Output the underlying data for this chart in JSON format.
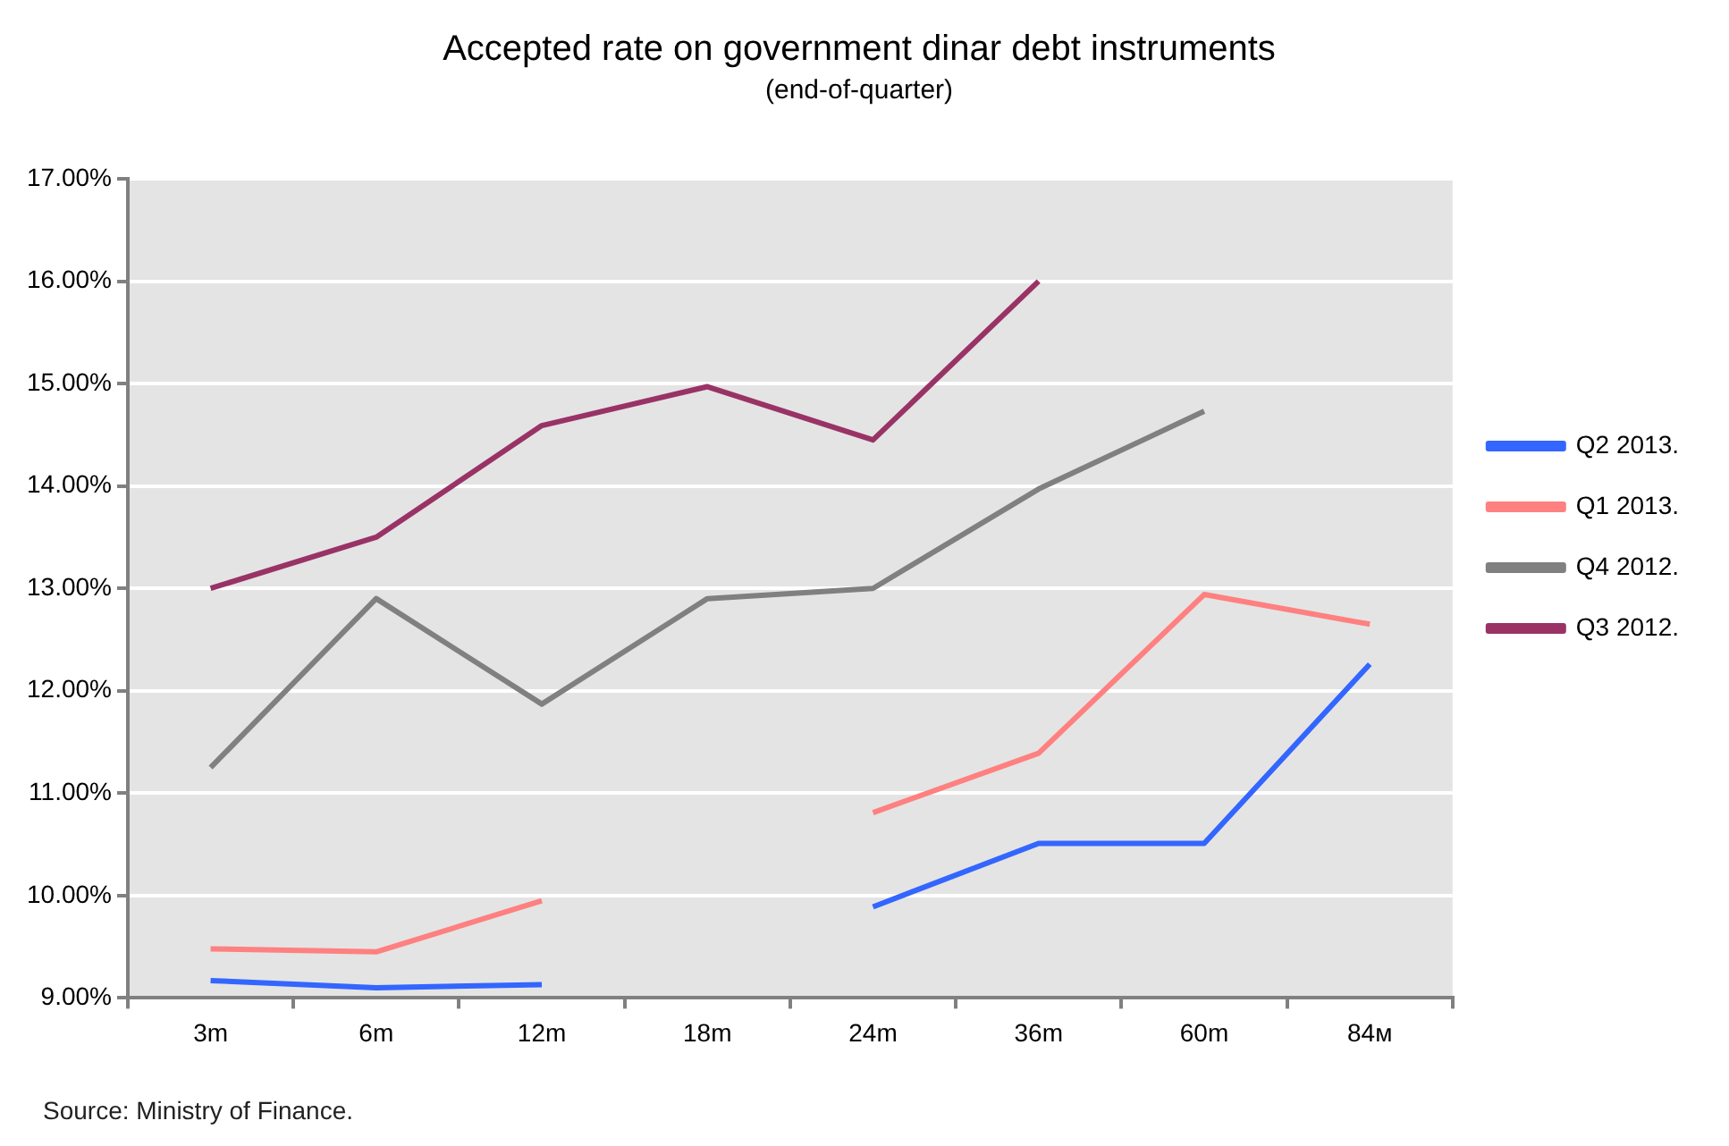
{
  "chart_data": {
    "type": "line",
    "title": "Accepted rate on government dinar debt instruments",
    "subtitle": "(end-of-quarter)",
    "categories": [
      "3m",
      "6m",
      "12m",
      "18m",
      "24m",
      "36m",
      "60m",
      "84м"
    ],
    "series": [
      {
        "name": "Q2 2013.",
        "color": "#3366ff",
        "values": [
          9.17,
          9.1,
          9.13,
          null,
          9.89,
          10.51,
          10.51,
          12.26
        ]
      },
      {
        "name": "Q1 2013.",
        "color": "#ff8080",
        "values": [
          9.48,
          9.45,
          9.95,
          null,
          10.81,
          11.39,
          12.94,
          12.65
        ]
      },
      {
        "name": "Q4 2012.",
        "color": "#808080",
        "values": [
          11.25,
          12.9,
          11.87,
          12.9,
          13.0,
          13.97,
          14.73,
          null
        ]
      },
      {
        "name": "Q3 2012.",
        "color": "#993366",
        "values": [
          13.0,
          13.5,
          14.59,
          14.97,
          14.45,
          16.0,
          null,
          null
        ]
      }
    ],
    "ylim": [
      9,
      17
    ],
    "yticks": [
      {
        "value": 9,
        "label": "9.00%"
      },
      {
        "value": 10,
        "label": "10.00%"
      },
      {
        "value": 11,
        "label": "11.00%"
      },
      {
        "value": 12,
        "label": "12.00%"
      },
      {
        "value": 13,
        "label": "13.00%"
      },
      {
        "value": 14,
        "label": "14.00%"
      },
      {
        "value": 15,
        "label": "15.00%"
      },
      {
        "value": 16,
        "label": "16.00%"
      },
      {
        "value": 17,
        "label": "17.00%"
      }
    ],
    "grid": "y",
    "legend": "right",
    "marker": "none",
    "line_style": "solid",
    "annotations": [
      "Source: Ministry of Finance."
    ]
  }
}
